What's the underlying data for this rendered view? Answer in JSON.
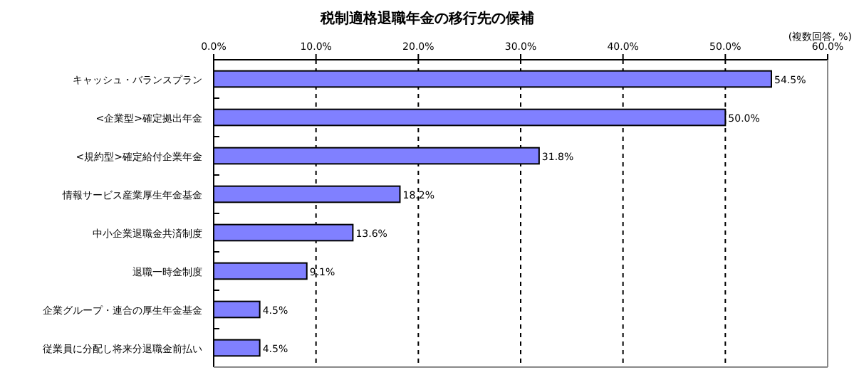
{
  "chart_data": {
    "type": "bar",
    "orientation": "horizontal",
    "title": "税制適格退職年金の移行先の候補",
    "annotations": [
      "(複数回答, %)"
    ],
    "categories": [
      "キャッシュ・バランスプラン",
      "<企業型>確定拠出年金",
      "<規約型>確定給付企業年金",
      "情報サービス産業厚生年金基金",
      "中小企業退職金共済制度",
      "退職一時金制度",
      "企業グループ・連合の厚生年金基金",
      "従業員に分配し将来分退職金前払い"
    ],
    "values": [
      54.5,
      50.0,
      31.8,
      18.2,
      13.6,
      9.1,
      4.5,
      4.5
    ],
    "value_labels": [
      "54.5%",
      "50.0%",
      "31.8%",
      "18.2%",
      "13.6%",
      "9.1%",
      "4.5%",
      "4.5%"
    ],
    "color": "#8080ff",
    "xlim": [
      0,
      60
    ],
    "xticks": [
      {
        "value": 0,
        "label": "0.0%"
      },
      {
        "value": 10,
        "label": "10.0%"
      },
      {
        "value": 20,
        "label": "20.0%"
      },
      {
        "value": 30,
        "label": "30.0%"
      },
      {
        "value": 40,
        "label": "40.0%"
      },
      {
        "value": 50,
        "label": "50.0%"
      },
      {
        "value": 60,
        "label": "60.0%"
      }
    ],
    "grid": "x"
  }
}
